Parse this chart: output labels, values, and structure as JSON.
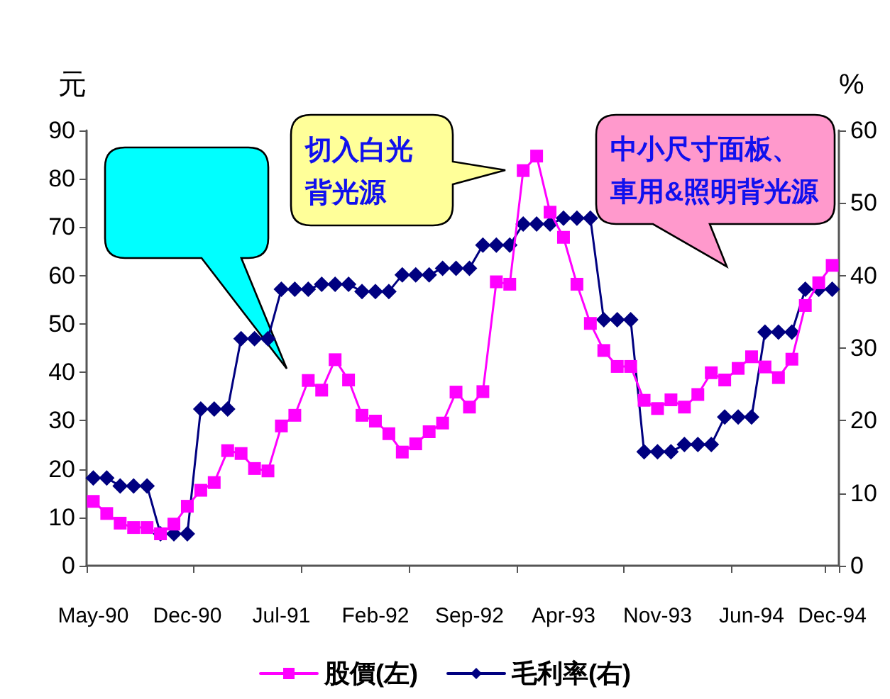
{
  "chart_data": {
    "type": "line",
    "categories": [
      "May-90",
      null,
      null,
      null,
      null,
      null,
      null,
      "Dec-90",
      null,
      null,
      null,
      null,
      null,
      null,
      "Jul-91",
      null,
      null,
      null,
      null,
      null,
      null,
      "Feb-92",
      null,
      null,
      null,
      null,
      null,
      null,
      "Sep-92",
      null,
      null,
      null,
      null,
      null,
      null,
      "Apr-93",
      null,
      null,
      null,
      null,
      null,
      null,
      "Nov-93",
      null,
      null,
      null,
      null,
      null,
      null,
      "Jun-94",
      null,
      null,
      null,
      null,
      null,
      "Dec-94"
    ],
    "series": [
      {
        "name": "股價(左)",
        "color": "#ff00ff",
        "marker": "square",
        "values": [
          13.3,
          10.8,
          8.8,
          7.9,
          7.9,
          6.6,
          8.6,
          12.3,
          15.6,
          17.2,
          23.8,
          23.2,
          20.1,
          19.6,
          28.9,
          31.1,
          38.3,
          36.3,
          42.6,
          38.4,
          31.1,
          29.9,
          27.3,
          23.5,
          25.2,
          27.7,
          29.5,
          35.9,
          32.8,
          36.0,
          58.7,
          58.2,
          81.7,
          84.7,
          73.1,
          67.9,
          58.2,
          50.1,
          44.5,
          41.2,
          41.2,
          34.2,
          32.5,
          34.3,
          32.8,
          35.4,
          39.9,
          38.4,
          40.8,
          43.2,
          41.1,
          38.9,
          42.7,
          53.8,
          58.5,
          62.1
        ]
      },
      {
        "name": "毛利率(右)",
        "color": "#000080",
        "marker": "diamond",
        "axis": "y2",
        "values": [
          12.1,
          12.1,
          11.0,
          11.0,
          11.0,
          4.4,
          4.4,
          4.4,
          21.6,
          21.6,
          21.6,
          31.3,
          31.3,
          31.3,
          38.1,
          38.1,
          38.1,
          38.8,
          38.8,
          38.8,
          37.8,
          37.8,
          37.8,
          40.1,
          40.1,
          40.1,
          41.0,
          41.0,
          41.0,
          44.2,
          44.2,
          44.2,
          47.1,
          47.1,
          47.1,
          47.9,
          47.9,
          47.9,
          33.9,
          33.9,
          33.9,
          15.7,
          15.7,
          15.7,
          16.7,
          16.7,
          16.7,
          20.5,
          20.5,
          20.5,
          32.2,
          32.2,
          32.2,
          38.1,
          38.1,
          38.1
        ]
      }
    ],
    "ylabel": "元",
    "y2label": "%",
    "ylim": [
      0,
      90
    ],
    "yticks": [
      0,
      10,
      20,
      30,
      40,
      50,
      60,
      70,
      80,
      90
    ],
    "y2lim": [
      0,
      60
    ],
    "y2ticks": [
      0,
      10,
      20,
      30,
      40,
      50,
      60
    ],
    "annotations": [
      "切入白光背光源",
      "中小尺寸面板、車用&照明背光源"
    ],
    "legend": "bottom",
    "grid": false,
    "line_style": "solid"
  }
}
